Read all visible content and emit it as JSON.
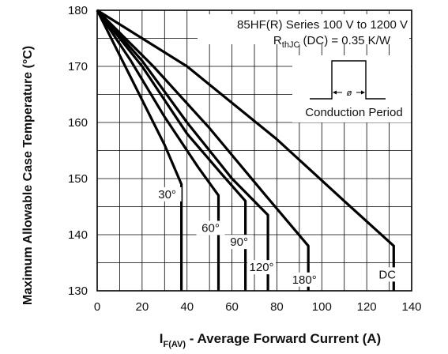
{
  "chart_data": {
    "type": "line",
    "annotation": {
      "line1": "85HF(R) Series 100 V to 1200 V",
      "rth_main": "R",
      "rth_sub": "thJC",
      "rth_rest": " (DC) = 0.35 K/W",
      "inset_symbol": "ø",
      "inset_label": "Conduction Period"
    },
    "ylabel": "Maximum Allowable Case Temperature (°C)",
    "xlabel_main": "I",
    "xlabel_sub": "F(AV)",
    "xlabel_rest": " - Average Forward Current (A)",
    "xlim": [
      0,
      140
    ],
    "ylim": [
      130,
      180
    ],
    "xticks": [
      "0",
      "20",
      "40",
      "60",
      "80",
      "100",
      "120",
      "140"
    ],
    "yticks": [
      "130",
      "140",
      "150",
      "160",
      "170",
      "180"
    ],
    "grid": true,
    "series": [
      {
        "name": "30°",
        "points": [
          [
            0,
            180
          ],
          [
            10,
            172
          ],
          [
            20,
            164
          ],
          [
            30,
            156
          ],
          [
            37.5,
            149
          ],
          [
            37.5,
            130
          ]
        ]
      },
      {
        "name": "60°",
        "points": [
          [
            0,
            180
          ],
          [
            15,
            171
          ],
          [
            30,
            161
          ],
          [
            45,
            152
          ],
          [
            54,
            147
          ],
          [
            54,
            130
          ]
        ]
      },
      {
        "name": "90°",
        "points": [
          [
            0,
            180
          ],
          [
            20,
            170
          ],
          [
            40,
            158
          ],
          [
            55,
            151
          ],
          [
            66,
            146
          ],
          [
            66,
            130
          ]
        ]
      },
      {
        "name": "120°",
        "points": [
          [
            0,
            180
          ],
          [
            20,
            171
          ],
          [
            40,
            160
          ],
          [
            60,
            150
          ],
          [
            76,
            143.5
          ],
          [
            76,
            130
          ]
        ]
      },
      {
        "name": "180°",
        "points": [
          [
            0,
            180
          ],
          [
            25,
            170
          ],
          [
            50,
            159
          ],
          [
            75,
            147
          ],
          [
            94,
            138
          ],
          [
            94,
            130
          ]
        ]
      },
      {
        "name": "DC",
        "points": [
          [
            0,
            180
          ],
          [
            40,
            170
          ],
          [
            80,
            157
          ],
          [
            110,
            146
          ],
          [
            132,
            138
          ],
          [
            132,
            130
          ]
        ]
      }
    ]
  }
}
